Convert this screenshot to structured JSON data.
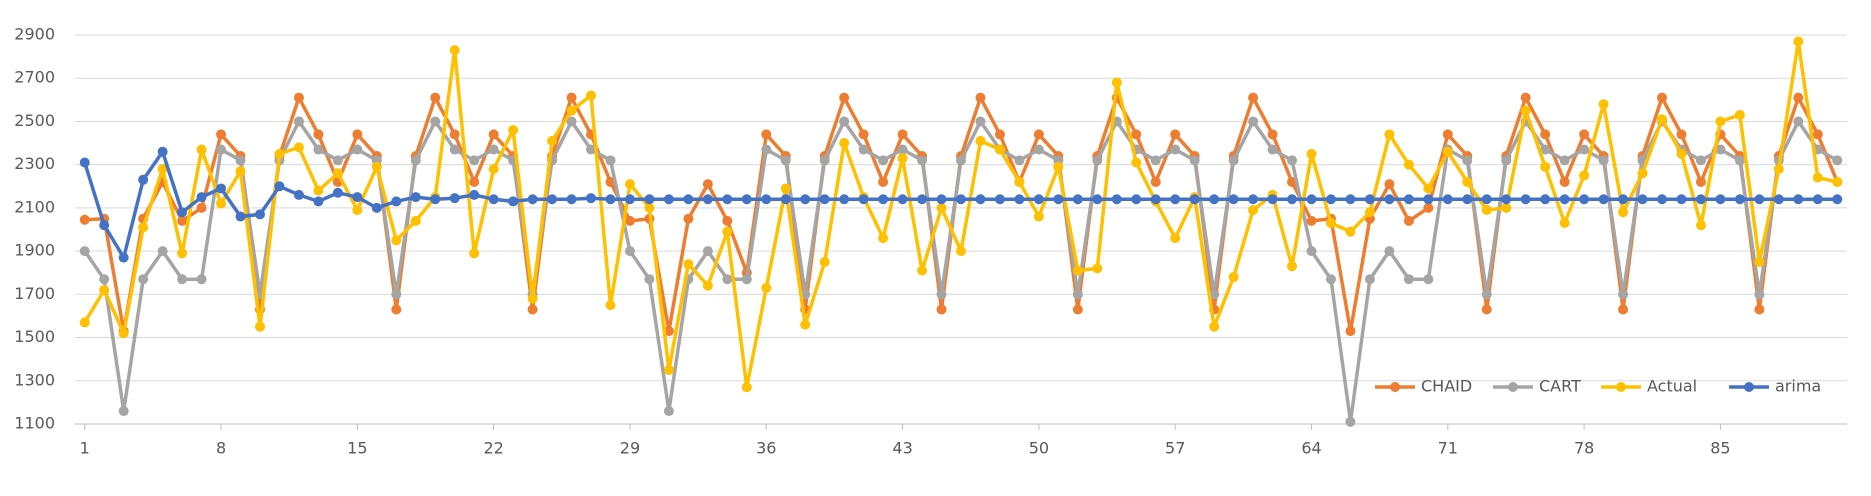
{
  "chart_data": {
    "type": "line",
    "x": [
      1,
      2,
      3,
      4,
      5,
      6,
      7,
      8,
      9,
      10,
      11,
      12,
      13,
      14,
      15,
      16,
      17,
      18,
      19,
      20,
      21,
      22,
      23,
      24,
      25,
      26,
      27,
      28,
      29,
      30,
      31,
      32,
      33,
      34,
      35,
      36,
      37,
      38,
      39,
      40,
      41,
      42,
      43,
      44,
      45,
      46,
      47,
      48,
      49,
      50,
      51,
      52,
      53,
      54,
      55,
      56,
      57,
      58,
      59,
      60,
      61,
      62,
      63,
      64,
      65,
      66,
      67,
      68,
      69,
      70,
      71,
      72,
      73,
      74,
      75,
      76,
      77,
      78,
      79,
      80,
      81,
      82,
      83,
      84,
      85,
      86,
      87,
      88,
      89,
      90,
      91
    ],
    "xlim": [
      0.5,
      91.5
    ],
    "xticks": [
      1,
      8,
      15,
      22,
      29,
      36,
      43,
      50,
      57,
      64,
      71,
      78,
      85
    ],
    "ylim": [
      1100,
      2900
    ],
    "yticks": [
      1100,
      1300,
      1500,
      1700,
      1900,
      2100,
      2300,
      2500,
      2700,
      2900
    ],
    "grid": true,
    "legend": "lower right",
    "series": [
      {
        "name": "CHAID",
        "color": "#ed7d31",
        "values": [
          2045,
          2050,
          1530,
          2050,
          2220,
          2040,
          2100,
          2440,
          2340,
          1630,
          2340,
          2610,
          2440,
          2220,
          2440,
          2340,
          1630,
          2340,
          2610,
          2440,
          2220,
          2440,
          2340,
          1630,
          2340,
          2610,
          2440,
          2220,
          2040,
          2050,
          1530,
          2050,
          2210,
          2040,
          1800,
          2440,
          2340,
          1630,
          2340,
          2610,
          2440,
          2220,
          2440,
          2340,
          1630,
          2340,
          2610,
          2440,
          2220,
          2440,
          2340,
          1630,
          2340,
          2610,
          2440,
          2220,
          2440,
          2340,
          1630,
          2340,
          2610,
          2440,
          2220,
          2040,
          2050,
          1530,
          2050,
          2210,
          2040,
          2100,
          2440,
          2340,
          1630,
          2340,
          2610,
          2440,
          2220,
          2440,
          2340,
          1630,
          2340,
          2610,
          2440,
          2220,
          2440,
          2340,
          1630,
          2340,
          2610,
          2440,
          2220
        ]
      },
      {
        "name": "CART",
        "color": "#a5a5a5",
        "values": [
          1900,
          1770,
          1160,
          1770,
          1900,
          1770,
          1770,
          2370,
          2320,
          1700,
          2320,
          2500,
          2370,
          2320,
          2370,
          2320,
          1700,
          2320,
          2500,
          2370,
          2320,
          2370,
          2320,
          1700,
          2320,
          2500,
          2370,
          2320,
          1900,
          1770,
          1160,
          1770,
          1900,
          1770,
          1770,
          2370,
          2320,
          1700,
          2320,
          2500,
          2370,
          2320,
          2370,
          2320,
          1700,
          2320,
          2500,
          2370,
          2320,
          2370,
          2320,
          1700,
          2320,
          2500,
          2370,
          2320,
          2370,
          2320,
          1700,
          2320,
          2500,
          2370,
          2320,
          1900,
          1770,
          1110,
          1770,
          1900,
          1770,
          1770,
          2370,
          2320,
          1700,
          2320,
          2500,
          2370,
          2320,
          2370,
          2320,
          1700,
          2320,
          2500,
          2370,
          2320,
          2370,
          2320,
          1700,
          2320,
          2500,
          2370,
          2320
        ]
      },
      {
        "name": "Actual",
        "color": "#ffc000",
        "values": [
          1570,
          1720,
          1520,
          2010,
          2280,
          1890,
          2370,
          2120,
          2270,
          1550,
          2350,
          2380,
          2180,
          2260,
          2090,
          2290,
          1950,
          2040,
          2150,
          2830,
          1890,
          2280,
          2460,
          1680,
          2410,
          2550,
          2620,
          1650,
          2210,
          2100,
          1350,
          1840,
          1740,
          1990,
          1270,
          1730,
          2190,
          1560,
          1850,
          2400,
          2150,
          1960,
          2330,
          1810,
          2100,
          1900,
          2410,
          2370,
          2220,
          2060,
          2290,
          1810,
          1820,
          2680,
          2310,
          2130,
          1960,
          2150,
          1550,
          1780,
          2090,
          2160,
          1830,
          2350,
          2030,
          1990,
          2080,
          2440,
          2300,
          2190,
          2360,
          2220,
          2090,
          2100,
          2550,
          2290,
          2030,
          2250,
          2580,
          2080,
          2260,
          2510,
          2350,
          2020,
          2500,
          2530,
          1850,
          2280,
          2870,
          2240,
          2220
        ]
      },
      {
        "name": "arima",
        "color": "#4472c4",
        "values": [
          2310,
          2020,
          1870,
          2230,
          2360,
          2080,
          2150,
          2190,
          2060,
          2070,
          2200,
          2160,
          2130,
          2170,
          2150,
          2100,
          2130,
          2150,
          2140,
          2145,
          2160,
          2140,
          2130,
          2140,
          2140,
          2140,
          2145,
          2140,
          2140,
          2140,
          2140,
          2140,
          2140,
          2140,
          2140,
          2140,
          2140,
          2140,
          2140,
          2140,
          2140,
          2140,
          2140,
          2140,
          2140,
          2140,
          2140,
          2140,
          2140,
          2140,
          2140,
          2140,
          2140,
          2140,
          2140,
          2140,
          2140,
          2140,
          2140,
          2140,
          2140,
          2140,
          2140,
          2140,
          2140,
          2140,
          2140,
          2140,
          2140,
          2140,
          2140,
          2140,
          2140,
          2140,
          2140,
          2140,
          2140,
          2140,
          2140,
          2140,
          2140,
          2140,
          2140,
          2140,
          2140,
          2140,
          2140,
          2140,
          2140,
          2140,
          2140
        ]
      }
    ]
  }
}
